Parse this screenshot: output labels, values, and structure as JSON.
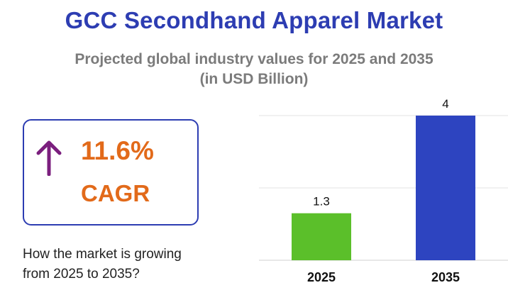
{
  "header": {
    "title": "GCC Secondhand Apparel Market",
    "subtitle_line1": "Projected global industry values for 2025 and 2035",
    "subtitle_line2": "(in USD Billion)"
  },
  "cagr": {
    "value": "11.6%",
    "label": "CAGR",
    "icon": "arrow-up-icon",
    "color": "#e26a1a",
    "arrow_color": "#7b1f7e"
  },
  "question": {
    "line1": "How the market is growing",
    "line2": "from 2025 to 2035?"
  },
  "chart_data": {
    "type": "bar",
    "categories": [
      "2025",
      "2035"
    ],
    "values": [
      1.3,
      4
    ],
    "data_labels": [
      "1.3",
      "4"
    ],
    "colors": [
      "#5bbf2a",
      "#2d44c0"
    ],
    "ylim": [
      0,
      4
    ],
    "grid": true,
    "title": "",
    "xlabel": "",
    "ylabel": ""
  }
}
